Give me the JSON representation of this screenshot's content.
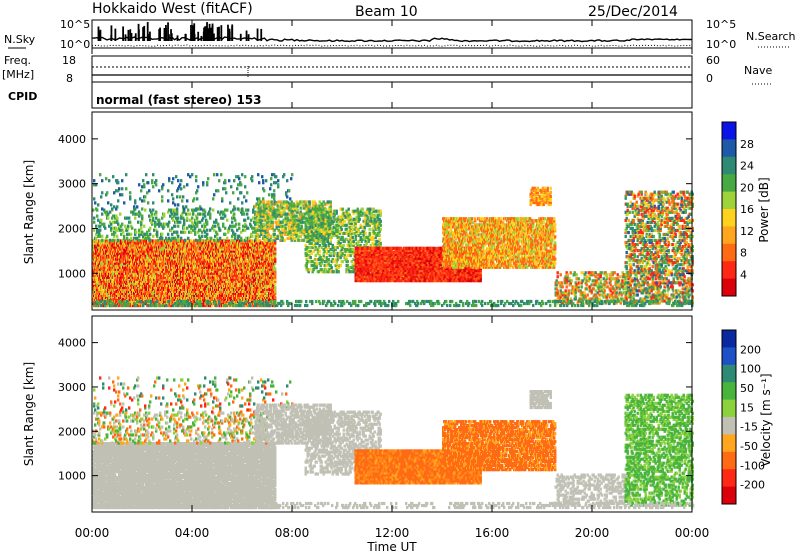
{
  "header": {
    "station": "Hokkaido West (fitACF)",
    "beam": "Beam 10",
    "date": "25/Dec/2014"
  },
  "chart_data": [
    {
      "type": "line",
      "panel": "noise",
      "left_label": "N.Sky",
      "right_label": "N.Search",
      "left_ticks": [
        "10^5",
        "10^0"
      ],
      "right_ticks": [
        "10^5",
        "10^0"
      ],
      "series": [
        {
          "name": "N.Sky",
          "style": "solid"
        },
        {
          "name": "N.Search",
          "style": "dotted"
        }
      ]
    },
    {
      "type": "line",
      "panel": "frequency",
      "left_label_top": "Freq.",
      "left_label_bottom": "[MHz]",
      "right_label": "Nave",
      "left_ticks": [
        "18",
        "8"
      ],
      "right_ticks": [
        "60",
        "0"
      ],
      "series": [
        {
          "name": "Freq.",
          "style": "solid"
        },
        {
          "name": "Nave",
          "style": "dotted"
        }
      ]
    },
    {
      "type": "table",
      "panel": "cpid",
      "label": "CPID",
      "mode_text": "normal (fast stereo) 153"
    },
    {
      "type": "heatmap",
      "panel": "power",
      "ylabel": "Slant Range [km]",
      "yticks": [
        "4000",
        "3000",
        "2000",
        "1000"
      ],
      "ylim": [
        180,
        4600
      ],
      "colorbar_label": "Power [dB]",
      "colorbar_ticks": [
        "28",
        "24",
        "20",
        "16",
        "12",
        "8",
        "4"
      ],
      "colorbar_colors": [
        "#0a14e6",
        "#1e5aa8",
        "#2e8a73",
        "#48a843",
        "#9ed23a",
        "#ffd21e",
        "#ffa51e",
        "#ff6a14",
        "#ff2814",
        "#dc000a"
      ]
    },
    {
      "type": "heatmap",
      "panel": "velocity",
      "ylabel": "Slant Range [km]",
      "yticks": [
        "4000",
        "3000",
        "2000",
        "1000"
      ],
      "ylim": [
        180,
        4600
      ],
      "colorbar_label": "Velocity [m s⁻¹]",
      "colorbar_ticks": [
        "200",
        "100",
        "50",
        "15",
        "-15",
        "-50",
        "-100",
        "-200"
      ],
      "colorbar_colors": [
        "#0a28a0",
        "#1e50c8",
        "#2e8a73",
        "#48b43c",
        "#8cd23c",
        "#c0c0b4",
        "#ffa51e",
        "#ff6a14",
        "#ff2814",
        "#dc000a"
      ]
    }
  ],
  "xaxis": {
    "label": "Time UT",
    "ticks": [
      "00:00",
      "04:00",
      "08:00",
      "12:00",
      "16:00",
      "20:00",
      "00:00"
    ]
  }
}
